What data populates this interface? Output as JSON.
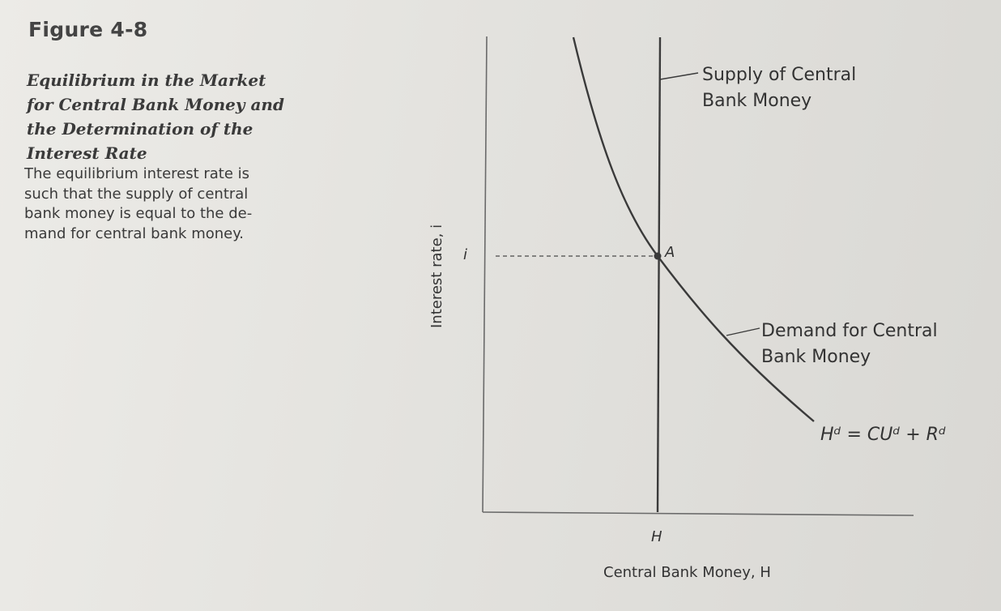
{
  "figure": {
    "number": "Figure 4-8",
    "title_lines": [
      "Equilibrium in the Market",
      "for Central Bank Money and",
      "the Determination of the",
      "Interest Rate"
    ],
    "caption_lines": [
      "The equilibrium interest rate is",
      "such that the supply of central",
      "bank money is equal to the de-",
      "mand for central bank money."
    ]
  },
  "diagram": {
    "y_axis_label": "Interest rate, i",
    "x_axis_label": "Central Bank Money, H",
    "y_tick_label": "i",
    "x_tick_label": "H",
    "equilibrium_point_label": "A",
    "supply_label_lines": [
      "Supply of Central",
      "Bank Money"
    ],
    "demand_label_lines": [
      "Demand for Central",
      "Bank Money"
    ],
    "demand_equation": "Hᵈ = CUᵈ + Rᵈ"
  }
}
